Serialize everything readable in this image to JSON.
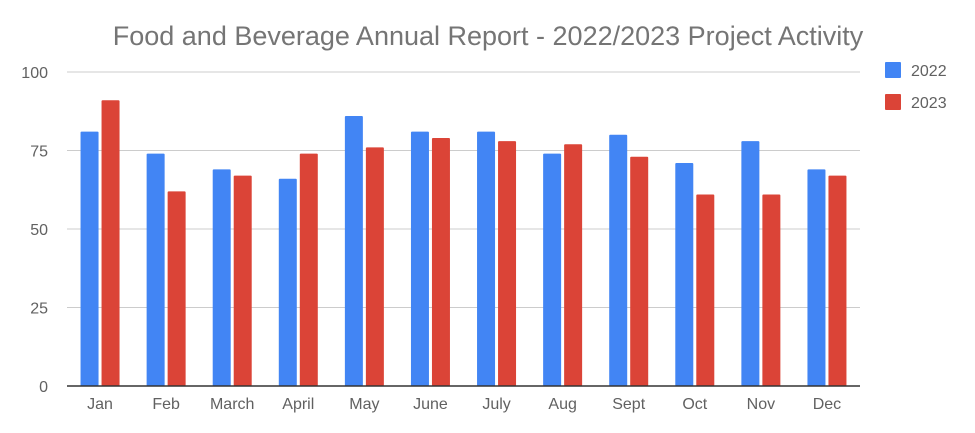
{
  "chart_data": {
    "type": "bar",
    "title": "Food and Beverage Annual Report - 2022/2023 Project Activity",
    "xlabel": "",
    "ylabel": "",
    "categories": [
      "Jan",
      "Feb",
      "March",
      "April",
      "May",
      "June",
      "July",
      "Aug",
      "Sept",
      "Oct",
      "Nov",
      "Dec"
    ],
    "series": [
      {
        "name": "2022",
        "color": "#4285f4",
        "values": [
          81,
          74,
          69,
          66,
          86,
          81,
          81,
          74,
          80,
          71,
          78,
          69
        ]
      },
      {
        "name": "2023",
        "color": "#db4437",
        "values": [
          91,
          62,
          67,
          74,
          76,
          79,
          78,
          77,
          73,
          61,
          61,
          67
        ]
      }
    ],
    "ylim": [
      0,
      100
    ],
    "yticks": [
      "0",
      "25",
      "50",
      "75",
      "100"
    ],
    "grid": true,
    "legend_position": "right"
  }
}
